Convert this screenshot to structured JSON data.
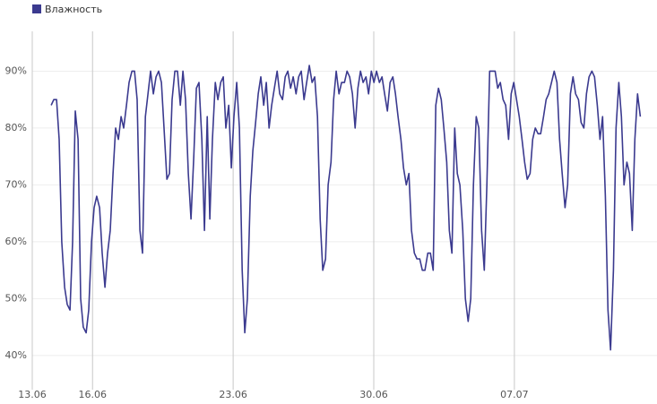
{
  "chart_data": {
    "type": "line",
    "xlim": [
      0,
      31.1
    ],
    "xticks": [
      {
        "value": 0,
        "label": "13.06"
      },
      {
        "value": 3,
        "label": "16.06"
      },
      {
        "value": 10,
        "label": "23.06"
      },
      {
        "value": 17,
        "label": "30.06"
      },
      {
        "value": 24,
        "label": "07.07"
      }
    ],
    "ylim": [
      34,
      97
    ],
    "yticks": [
      {
        "value": 40,
        "label": "40%"
      },
      {
        "value": 50,
        "label": "50%"
      },
      {
        "value": 60,
        "label": "60%"
      },
      {
        "value": 70,
        "label": "70%"
      },
      {
        "value": 80,
        "label": "80%"
      },
      {
        "value": 90,
        "label": "90%"
      }
    ],
    "grid": true,
    "legend": "top-left",
    "x": [
      0.94,
      1.07,
      1.21,
      1.34,
      1.47,
      1.61,
      1.74,
      1.88,
      2.01,
      2.14,
      2.28,
      2.41,
      2.54,
      2.68,
      2.81,
      2.95,
      3.08,
      3.21,
      3.35,
      3.48,
      3.62,
      3.75,
      3.88,
      4.02,
      4.15,
      4.29,
      4.42,
      4.55,
      4.69,
      4.82,
      4.96,
      5.09,
      5.22,
      5.36,
      5.49,
      5.63,
      5.76,
      5.89,
      6.03,
      6.16,
      6.29,
      6.43,
      6.56,
      6.7,
      6.83,
      6.96,
      7.1,
      7.23,
      7.37,
      7.5,
      7.63,
      7.77,
      7.9,
      8.04,
      8.17,
      8.3,
      8.44,
      8.57,
      8.71,
      8.84,
      8.97,
      9.11,
      9.24,
      9.38,
      9.51,
      9.64,
      9.78,
      9.91,
      10.04,
      10.18,
      10.31,
      10.45,
      10.58,
      10.71,
      10.85,
      10.98,
      11.12,
      11.25,
      11.38,
      11.52,
      11.65,
      11.79,
      11.92,
      12.05,
      12.19,
      12.32,
      12.46,
      12.59,
      12.72,
      12.86,
      12.99,
      13.13,
      13.26,
      13.39,
      13.53,
      13.66,
      13.79,
      13.93,
      14.06,
      14.2,
      14.33,
      14.46,
      14.6,
      14.73,
      14.87,
      15.0,
      15.13,
      15.27,
      15.4,
      15.54,
      15.67,
      15.8,
      15.94,
      16.07,
      16.21,
      16.34,
      16.47,
      16.61,
      16.74,
      16.88,
      17.01,
      17.14,
      17.28,
      17.41,
      17.54,
      17.68,
      17.81,
      17.95,
      18.08,
      18.21,
      18.35,
      18.48,
      18.62,
      18.75,
      18.88,
      19.02,
      19.15,
      19.29,
      19.42,
      19.55,
      19.69,
      19.82,
      19.96,
      20.09,
      20.22,
      20.36,
      20.49,
      20.63,
      20.76,
      20.89,
      21.03,
      21.16,
      21.29,
      21.43,
      21.56,
      21.7,
      21.83,
      21.96,
      22.1,
      22.23,
      22.37,
      22.5,
      22.63,
      22.77,
      22.9,
      23.04,
      23.17,
      23.3,
      23.44,
      23.57,
      23.71,
      23.84,
      23.97,
      24.11,
      24.24,
      24.38,
      24.51,
      24.64,
      24.78,
      24.91,
      25.04,
      25.18,
      25.31,
      25.45,
      25.58,
      25.71,
      25.85,
      25.98,
      26.12,
      26.25,
      26.38,
      26.52,
      26.65,
      26.79,
      26.92,
      27.05,
      27.19,
      27.32,
      27.46,
      27.59,
      27.72,
      27.86,
      27.99,
      28.13,
      28.26,
      28.39,
      28.53,
      28.66,
      28.79,
      28.93,
      29.06,
      29.2,
      29.33,
      29.46,
      29.6,
      29.73,
      29.87,
      30.0,
      30.13,
      30.27
    ],
    "series": [
      {
        "name": "Влажность",
        "color": "#3b3a8f",
        "values": [
          84,
          85,
          85,
          78,
          60,
          52,
          49,
          48,
          60,
          83,
          78,
          50,
          45,
          44,
          48,
          60,
          66,
          68,
          66,
          58,
          52,
          58,
          62,
          72,
          80,
          78,
          82,
          80,
          84,
          88,
          90,
          90,
          85,
          62,
          58,
          82,
          86,
          90,
          86,
          89,
          90,
          88,
          80,
          71,
          72,
          85,
          90,
          90,
          84,
          90,
          85,
          72,
          64,
          75,
          87,
          88,
          78,
          62,
          82,
          64,
          78,
          88,
          85,
          88,
          89,
          80,
          84,
          73,
          82,
          88,
          80,
          55,
          44,
          50,
          68,
          76,
          81,
          86,
          89,
          84,
          88,
          80,
          84,
          87,
          90,
          86,
          85,
          89,
          90,
          87,
          89,
          86,
          89,
          90,
          85,
          88,
          91,
          88,
          89,
          82,
          64,
          55,
          57,
          70,
          74,
          85,
          90,
          86,
          88,
          88,
          90,
          89,
          86,
          80,
          87,
          90,
          88,
          89,
          86,
          90,
          88,
          90,
          88,
          89,
          86,
          83,
          88,
          89,
          86,
          82,
          78,
          73,
          70,
          72,
          62,
          58,
          57,
          57,
          55,
          55,
          58,
          58,
          55,
          84,
          87,
          85,
          80,
          74,
          62,
          58,
          80,
          72,
          70,
          62,
          50,
          46,
          50,
          70,
          82,
          80,
          62,
          55,
          70,
          90,
          90,
          90,
          87,
          88,
          85,
          84,
          78,
          86,
          88,
          85,
          82,
          78,
          74,
          71,
          72,
          78,
          80,
          79,
          79,
          82,
          85,
          86,
          88,
          90,
          88,
          78,
          72,
          66,
          70,
          86,
          89,
          86,
          85,
          81,
          80,
          86,
          89,
          90,
          89,
          84,
          78,
          82,
          68,
          48,
          41,
          55,
          80,
          88,
          82,
          70,
          74,
          72,
          62,
          78,
          86,
          82
        ]
      }
    ]
  }
}
